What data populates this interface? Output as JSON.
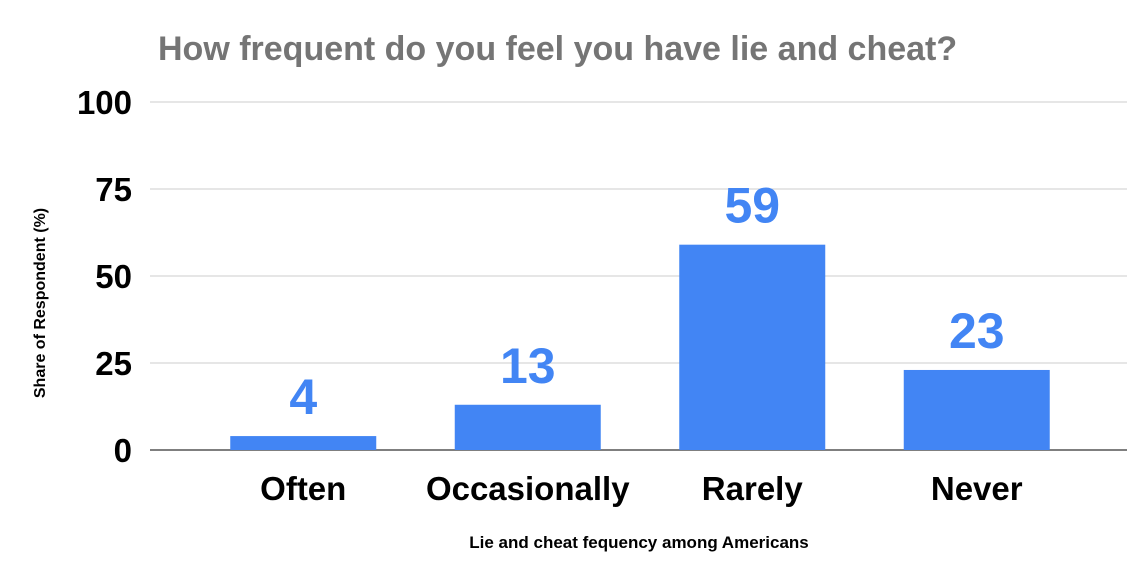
{
  "chart_data": {
    "type": "bar",
    "title": "How frequent do you feel you have lie and cheat?",
    "xlabel": "Lie and cheat fequency among Americans",
    "ylabel": "Share of Respondent (%)",
    "categories": [
      "Often",
      "Occasionally",
      "Rarely",
      "Never"
    ],
    "values": [
      4,
      13,
      59,
      23
    ],
    "data_labels": [
      "4",
      "13",
      "59",
      "23"
    ],
    "ylim": [
      0,
      100
    ],
    "yticks": [
      0,
      25,
      50,
      75,
      100
    ],
    "grid": true,
    "legend": "none",
    "colors": {
      "bar": "#4285f4",
      "data_label": "#4285f4",
      "title": "#757575",
      "text": "#000000",
      "grid": "#cccccc",
      "baseline": "#333333"
    }
  }
}
